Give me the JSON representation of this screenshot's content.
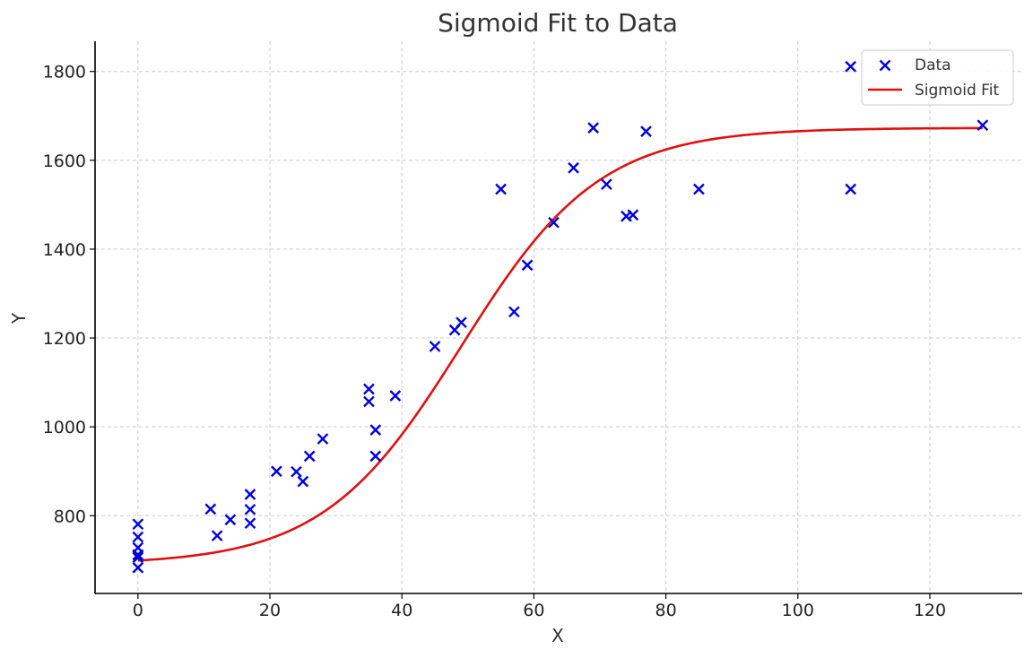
{
  "chart_data": {
    "type": "scatter",
    "title": "Sigmoid Fit to Data",
    "xlabel": "X",
    "ylabel": "Y",
    "xlim": [
      -6.5,
      134
    ],
    "ylim": [
      625,
      1868
    ],
    "xticks": [
      0,
      20,
      40,
      60,
      80,
      100,
      120
    ],
    "yticks": [
      800,
      1000,
      1200,
      1400,
      1600,
      1800
    ],
    "grid": true,
    "legend_position": "top-right",
    "colors": {
      "data": "#0000dd",
      "fit": "#e01010"
    },
    "legend": {
      "data_label": "Data",
      "fit_label": "Sigmoid Fit"
    },
    "series": [
      {
        "name": "Data",
        "kind": "scatter",
        "marker": "x",
        "points": [
          [
            0,
            781
          ],
          [
            0,
            752
          ],
          [
            0,
            728
          ],
          [
            0,
            712
          ],
          [
            0,
            706
          ],
          [
            0,
            683
          ],
          [
            11,
            815
          ],
          [
            12,
            755
          ],
          [
            14,
            791
          ],
          [
            17,
            848
          ],
          [
            17,
            814
          ],
          [
            17,
            783
          ],
          [
            21,
            900
          ],
          [
            24,
            899
          ],
          [
            25,
            877
          ],
          [
            26,
            934
          ],
          [
            28,
            973
          ],
          [
            35,
            1085
          ],
          [
            35,
            1057
          ],
          [
            36,
            993
          ],
          [
            36,
            934
          ],
          [
            39,
            1070
          ],
          [
            45,
            1181
          ],
          [
            48,
            1218
          ],
          [
            49,
            1235
          ],
          [
            55,
            1535
          ],
          [
            57,
            1259
          ],
          [
            59,
            1364
          ],
          [
            63,
            1460
          ],
          [
            66,
            1583
          ],
          [
            69,
            1673
          ],
          [
            71,
            1546
          ],
          [
            74,
            1474
          ],
          [
            75,
            1477
          ],
          [
            77,
            1665
          ],
          [
            85,
            1535
          ],
          [
            108,
            1811
          ],
          [
            108,
            1535
          ],
          [
            128,
            1679
          ]
        ]
      },
      {
        "name": "Sigmoid Fit",
        "kind": "line",
        "function": "sigmoid",
        "params": {
          "lower": 690,
          "upper": 1673,
          "midpoint": 49,
          "scale": 10.5
        },
        "x_range": [
          0,
          128
        ]
      }
    ]
  }
}
